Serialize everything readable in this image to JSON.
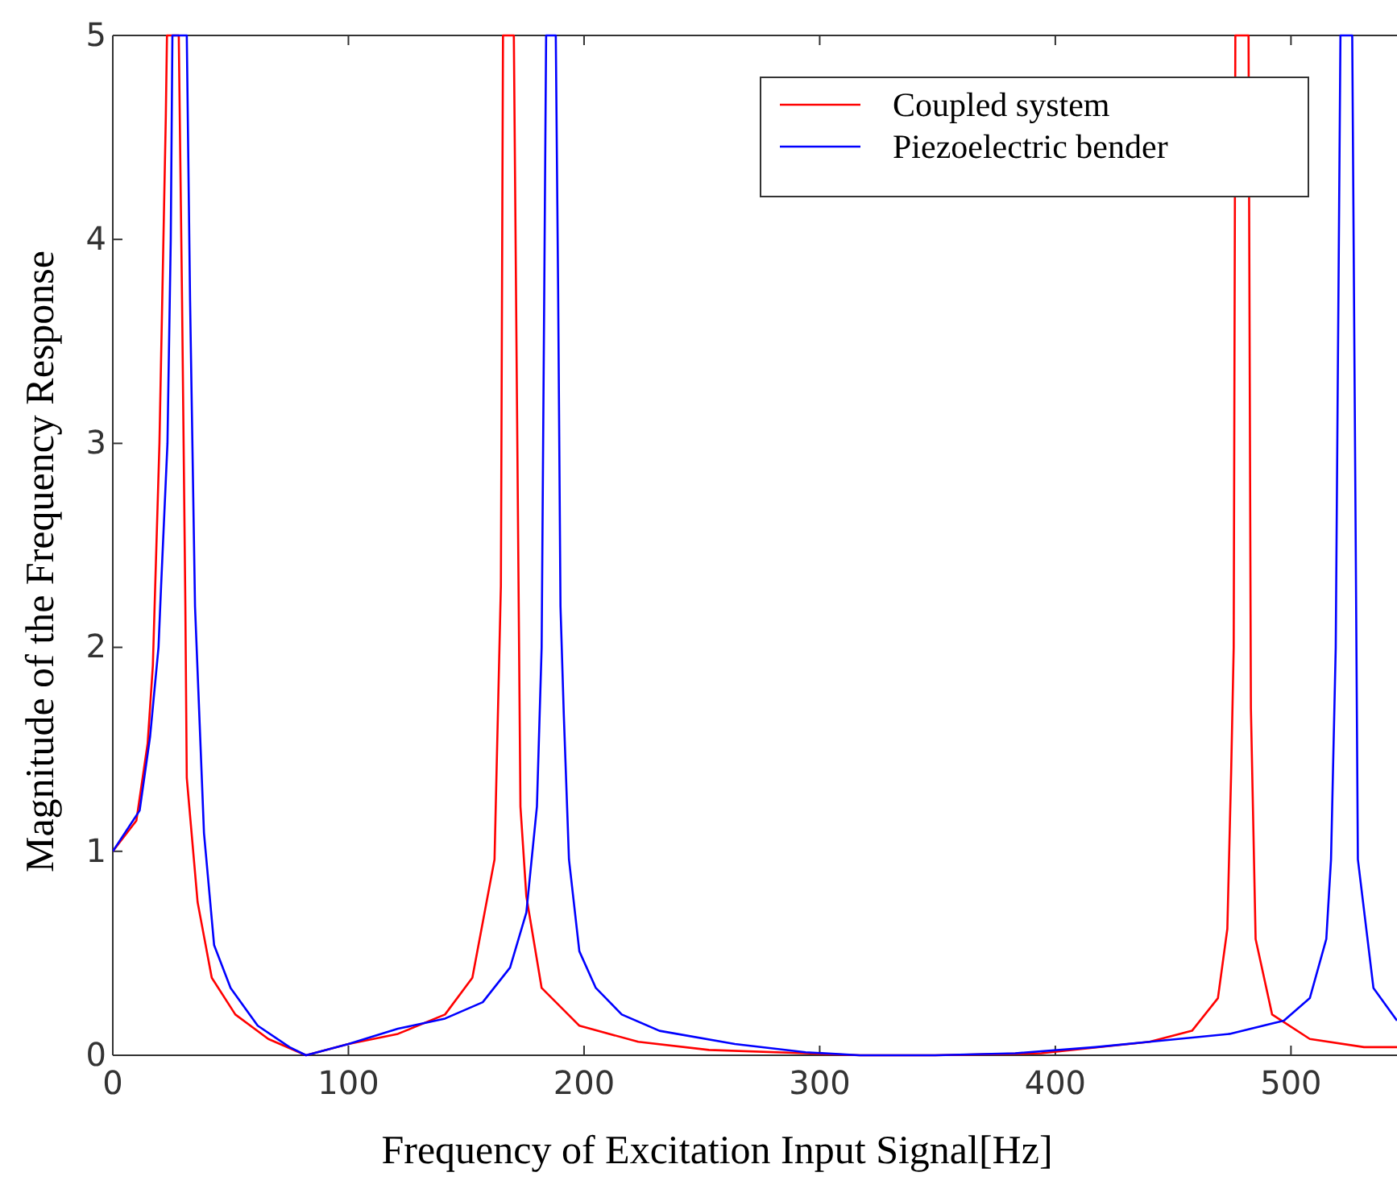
{
  "chart_data": {
    "type": "line",
    "xlabel": "Frequency of Excitation Input Signal[Hz]",
    "ylabel": "Magnitude of the Frequency Response",
    "xlim": [
      0,
      545
    ],
    "ylim": [
      0,
      5
    ],
    "xticks": [
      0,
      100,
      200,
      300,
      400,
      500
    ],
    "yticks": [
      0,
      1,
      2,
      3,
      4,
      5
    ],
    "grid": false,
    "legend": "top right",
    "line_style": "solid",
    "marker": "none",
    "series": [
      {
        "name": "Coupled system",
        "color": "#ff0000",
        "x": [
          0,
          10,
          14.8,
          17,
          19.8,
          22.5,
          23,
          28,
          29.4,
          30.8,
          31.4,
          36,
          42,
          52,
          66,
          82,
          100,
          121,
          141,
          152.6,
          162,
          164.7,
          165.6,
          170.2,
          173,
          175.5,
          182,
          198,
          223,
          253,
          294,
          317,
          349,
          394,
          440,
          458,
          469,
          473,
          474.6,
          475.7,
          476.4,
          482,
          483,
          485,
          492,
          508,
          531,
          545
        ],
        "values": [
          1,
          1.15,
          1.53,
          1.91,
          3,
          4.6,
          5,
          5,
          3.7,
          2.2,
          1.36,
          0.75,
          0.38,
          0.2,
          0.08,
          0,
          0.055,
          0.105,
          0.2,
          0.38,
          0.96,
          2.3,
          5,
          5,
          1.22,
          0.78,
          0.33,
          0.145,
          0.066,
          0.026,
          0.01,
          0,
          0,
          0.01,
          0.066,
          0.12,
          0.28,
          0.62,
          1.38,
          2,
          5,
          5,
          1.7,
          0.57,
          0.2,
          0.08,
          0.04,
          0.04
        ]
      },
      {
        "name": "Piezoelectric bender",
        "color": "#0000ff",
        "x": [
          0,
          11.4,
          15.8,
          19.4,
          20.5,
          23.2,
          24.6,
          25.3,
          31.4,
          32.8,
          34.9,
          38.7,
          43,
          50,
          61.5,
          75,
          82,
          100,
          121,
          141,
          157,
          168.6,
          175.5,
          180,
          182,
          183.9,
          188,
          189,
          190,
          191.4,
          193.6,
          198,
          205,
          216,
          232,
          264,
          294,
          317,
          349,
          383,
          417,
          440,
          474,
          497,
          508,
          515,
          517,
          519,
          521,
          526,
          528.4,
          535,
          545
        ],
        "values": [
          1,
          1.2,
          1.56,
          2,
          2.3,
          3,
          4,
          5,
          5,
          3.7,
          2.2,
          1.09,
          0.54,
          0.33,
          0.145,
          0.04,
          0,
          0.055,
          0.13,
          0.18,
          0.26,
          0.43,
          0.7,
          1.22,
          2,
          5,
          5,
          3.75,
          2.2,
          1.67,
          0.96,
          0.51,
          0.33,
          0.2,
          0.12,
          0.055,
          0.015,
          0,
          0,
          0.01,
          0.04,
          0.066,
          0.105,
          0.17,
          0.28,
          0.57,
          0.96,
          2,
          5,
          5,
          0.96,
          0.33,
          0.17
        ]
      }
    ]
  }
}
